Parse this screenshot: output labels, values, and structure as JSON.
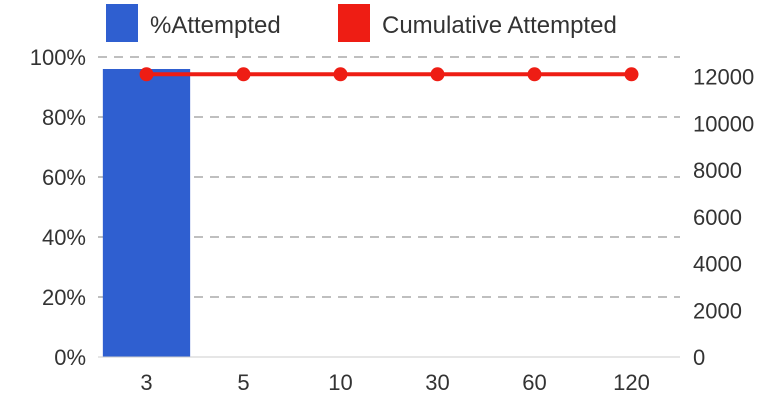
{
  "chart_data": {
    "type": "bar",
    "categories": [
      "3",
      "5",
      "10",
      "30",
      "60",
      "120"
    ],
    "series": [
      {
        "name": "%Attempted",
        "type": "bar",
        "axis": "left",
        "values": [
          96,
          0,
          0,
          0,
          0,
          0
        ]
      },
      {
        "name": "Cumulative Attempted",
        "type": "line",
        "axis": "right",
        "values": [
          12100,
          12100,
          12100,
          12100,
          12100,
          12100
        ]
      }
    ],
    "y_left": {
      "ticks": [
        "0%",
        "20%",
        "40%",
        "60%",
        "80%",
        "100%"
      ],
      "range": [
        0,
        100
      ]
    },
    "y_right": {
      "ticks": [
        "0",
        "2000",
        "4000",
        "6000",
        "8000",
        "10000",
        "12000"
      ],
      "range": [
        0,
        12840
      ]
    },
    "grid": true,
    "legend": "top",
    "colors": {
      "bar": "#2f5fd0",
      "line": "#ee1d14",
      "marker": "#ee1d14",
      "grid": "#999999"
    }
  }
}
